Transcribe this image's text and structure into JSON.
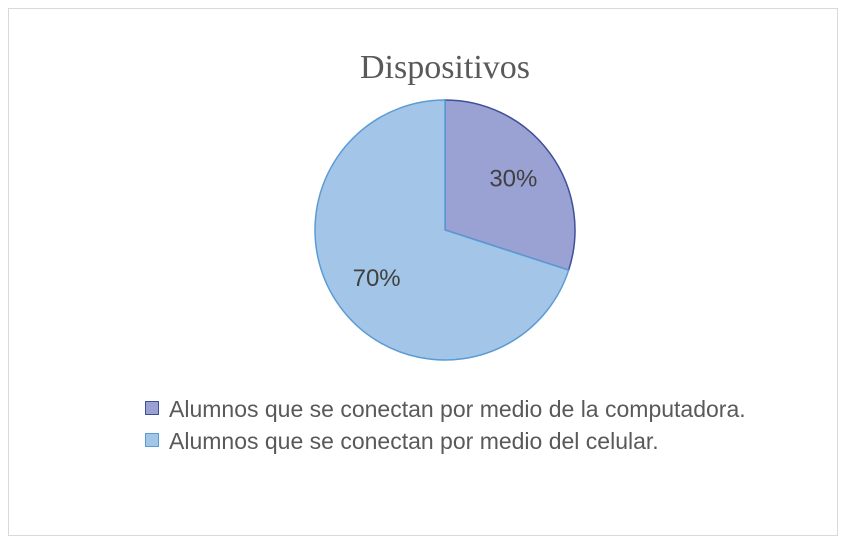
{
  "chart_data": {
    "type": "pie",
    "title": "Dispositivos",
    "categories": [
      "Alumnos que se conectan por medio de la computadora.",
      "Alumnos que se conectan por medio del celular."
    ],
    "values": [
      30,
      70
    ],
    "value_labels": [
      "30%",
      "70%"
    ],
    "colors": [
      "#9aa2d4",
      "#a3c6e8"
    ],
    "edge_colors": [
      "#3f4f9a",
      "#5b9bd5"
    ]
  }
}
